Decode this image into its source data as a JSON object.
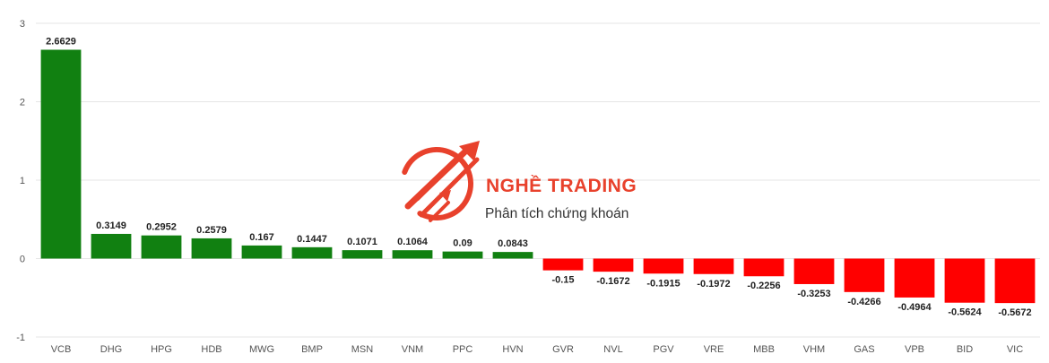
{
  "watermark": {
    "brand": "NGHỀ TRADING",
    "tagline": "Phân tích chứng khoán",
    "brand_color": "#e8412c"
  },
  "chart_data": {
    "type": "bar",
    "categories": [
      "VCB",
      "DHG",
      "HPG",
      "HDB",
      "MWG",
      "BMP",
      "MSN",
      "VNM",
      "PPC",
      "HVN",
      "GVR",
      "NVL",
      "PGV",
      "VRE",
      "MBB",
      "VHM",
      "GAS",
      "VPB",
      "BID",
      "VIC"
    ],
    "values": [
      2.6629,
      0.3149,
      0.2952,
      0.2579,
      0.167,
      0.1447,
      0.1071,
      0.1064,
      0.09,
      0.0843,
      -0.15,
      -0.1672,
      -0.1915,
      -0.1972,
      -0.2256,
      -0.3253,
      -0.4266,
      -0.4964,
      -0.5624,
      -0.5672
    ],
    "data_labels": [
      "2.6629",
      "0.3149",
      "0.2952",
      "0.2579",
      "0.167",
      "0.1447",
      "0.1071",
      "0.1064",
      "0.09",
      "0.0843",
      "-0.15",
      "-0.1672",
      "-0.1915",
      "-0.1972",
      "-0.2256",
      "-0.3253",
      "-0.4266",
      "-0.4964",
      "-0.5624",
      "-0.5672"
    ],
    "y_ticks": [
      "3",
      "2",
      "1",
      "0",
      "-1"
    ],
    "ylim": [
      -1,
      3
    ],
    "grid": true,
    "colors": {
      "positive": "#118011",
      "negative": "#ff0000",
      "grid": "#e6e6e6"
    }
  }
}
